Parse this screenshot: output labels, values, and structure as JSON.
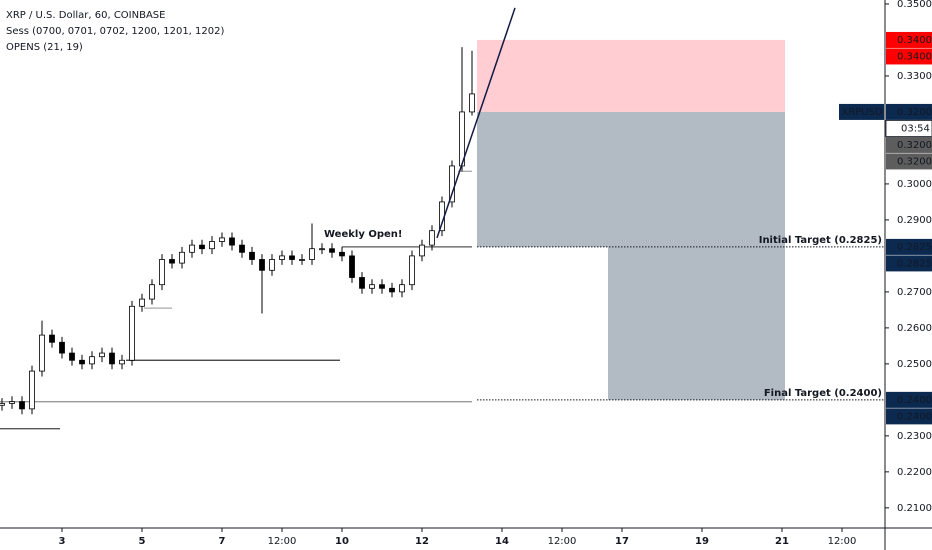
{
  "chart_data": {
    "type": "candlestick",
    "title": "XRP / U.S. Dollar, 60, COINBASE",
    "indicators": [
      "Sess (0700, 0701, 0702, 1200, 1201, 1202)",
      "OPENS (21, 19)"
    ],
    "x": [
      1.5,
      1.75,
      2,
      2.25,
      2.5,
      2.75,
      3,
      3.25,
      3.5,
      3.75,
      4,
      4.25,
      4.5,
      4.75,
      5,
      5.25,
      5.5,
      5.75,
      6,
      6.25,
      6.5,
      6.75,
      7,
      7.25,
      7.5,
      7.75,
      8,
      8.25,
      8.5,
      8.75,
      9,
      9.25,
      9.5,
      9.75,
      10,
      10.25,
      10.5,
      10.75,
      11,
      11.25,
      11.5,
      11.75,
      12,
      12.25,
      12.5,
      12.75,
      13,
      13.25
    ],
    "open": [
      0.2385,
      0.239,
      0.2395,
      0.2375,
      0.248,
      0.258,
      0.256,
      0.253,
      0.251,
      0.25,
      0.252,
      0.253,
      0.25,
      0.251,
      0.266,
      0.268,
      0.272,
      0.279,
      0.278,
      0.281,
      0.283,
      0.282,
      0.284,
      0.285,
      0.283,
      0.281,
      0.279,
      0.276,
      0.279,
      0.28,
      0.279,
      0.279,
      0.282,
      0.282,
      0.281,
      0.28,
      0.274,
      0.271,
      0.272,
      0.271,
      0.27,
      0.272,
      0.28,
      0.283,
      0.287,
      0.295,
      0.305,
      0.32
    ],
    "high": [
      0.2405,
      0.241,
      0.241,
      0.2495,
      0.262,
      0.2595,
      0.2575,
      0.2545,
      0.2525,
      0.2535,
      0.2545,
      0.2545,
      0.2525,
      0.2675,
      0.2695,
      0.2735,
      0.2805,
      0.2805,
      0.2825,
      0.2845,
      0.2845,
      0.2855,
      0.2865,
      0.2865,
      0.2845,
      0.2825,
      0.2805,
      0.2805,
      0.2815,
      0.2815,
      0.2805,
      0.289,
      0.2835,
      0.2835,
      0.2825,
      0.2815,
      0.2755,
      0.2735,
      0.2735,
      0.2725,
      0.2735,
      0.2815,
      0.2845,
      0.2885,
      0.2965,
      0.3065,
      0.338,
      0.337
    ],
    "low": [
      0.237,
      0.2375,
      0.236,
      0.236,
      0.2465,
      0.2545,
      0.2515,
      0.2495,
      0.2485,
      0.2485,
      0.2505,
      0.2485,
      0.2485,
      0.2495,
      0.2645,
      0.2665,
      0.2705,
      0.2765,
      0.2765,
      0.2795,
      0.2805,
      0.2805,
      0.2825,
      0.2815,
      0.2795,
      0.2775,
      0.264,
      0.2745,
      0.2775,
      0.2775,
      0.2775,
      0.2775,
      0.2805,
      0.2795,
      0.2785,
      0.2725,
      0.2695,
      0.2695,
      0.2695,
      0.2685,
      0.2685,
      0.2705,
      0.2785,
      0.2815,
      0.2855,
      0.2935,
      0.3035,
      0.319
    ],
    "close": [
      0.239,
      0.2395,
      0.2375,
      0.248,
      0.258,
      0.256,
      0.253,
      0.251,
      0.25,
      0.252,
      0.253,
      0.25,
      0.251,
      0.266,
      0.268,
      0.272,
      0.279,
      0.278,
      0.281,
      0.283,
      0.282,
      0.284,
      0.285,
      0.283,
      0.281,
      0.279,
      0.276,
      0.279,
      0.28,
      0.279,
      0.279,
      0.282,
      0.282,
      0.281,
      0.28,
      0.274,
      0.271,
      0.272,
      0.271,
      0.27,
      0.272,
      0.28,
      0.283,
      0.287,
      0.295,
      0.305,
      0.32,
      0.325
    ],
    "xlim": [
      1.45,
      23.575
    ],
    "xticks": [
      {
        "value": 3,
        "label": "3"
      },
      {
        "value": 5,
        "label": "5"
      },
      {
        "value": 7,
        "label": "7"
      },
      {
        "value": 8.5,
        "label": "12:00"
      },
      {
        "value": 10,
        "label": "10"
      },
      {
        "value": 12,
        "label": "12"
      },
      {
        "value": 14,
        "label": "14"
      },
      {
        "value": 15.5,
        "label": "12:00"
      },
      {
        "value": 17,
        "label": "17"
      },
      {
        "value": 19,
        "label": "19"
      },
      {
        "value": 21,
        "label": "21"
      },
      {
        "value": 22.5,
        "label": "12:00"
      }
    ],
    "ylim": [
      0.2044,
      0.3511
    ],
    "yticks": [
      {
        "value": 0.35,
        "label": "0.3500"
      },
      {
        "value": 0.33,
        "label": "0.3300"
      },
      {
        "value": 0.3,
        "label": "0.3000"
      },
      {
        "value": 0.29,
        "label": "0.2900"
      },
      {
        "value": 0.27,
        "label": "0.2700"
      },
      {
        "value": 0.26,
        "label": "0.2600"
      },
      {
        "value": 0.25,
        "label": "0.2500"
      },
      {
        "value": 0.23,
        "label": "0.2300"
      },
      {
        "value": 0.22,
        "label": "0.2200"
      },
      {
        "value": 0.21,
        "label": "0.2100"
      }
    ],
    "hlines": [
      {
        "price": 0.2825,
        "from": 10,
        "to": 13.25,
        "color": "#555555"
      },
      {
        "price": 0.251,
        "from": 4.6,
        "to": 9.95,
        "color": "#333333"
      },
      {
        "price": 0.2395,
        "from": 1.45,
        "to": 13.25,
        "color": "#999999"
      },
      {
        "price": 0.232,
        "from": 1.45,
        "to": 2.95,
        "color": "#555555"
      },
      {
        "price": 0.2655,
        "from": 5.05,
        "to": 5.75,
        "color": "#aaaaaa"
      },
      {
        "price": 0.3035,
        "from": 12.9,
        "to": 13.25,
        "color": "#aaaaaa"
      }
    ],
    "trendline": {
      "x": [
        12.375,
        14.325
      ],
      "y": [
        0.285,
        0.3489
      ],
      "color": "#131a45"
    },
    "annotations": [
      {
        "text": "Weekly Open!",
        "x": 10,
        "y": 0.2855
      }
    ],
    "boxes": [
      {
        "from": 13.375,
        "to": 21.075,
        "top": 0.34,
        "bottom": 0.32,
        "color": "#ffcdd2"
      },
      {
        "from": 13.375,
        "to": 21.075,
        "top": 0.32,
        "bottom": 0.2825,
        "color": "#b2bac4"
      },
      {
        "from": 16.65,
        "to": 21.075,
        "top": 0.2825,
        "bottom": 0.24,
        "color": "#b2bac4"
      }
    ],
    "targets": [
      {
        "price": 0.2825,
        "from": 13.375,
        "label": "Initial Target (0.2825)"
      },
      {
        "price": 0.24,
        "from": 13.375,
        "label": "Final Target (0.2400)"
      }
    ],
    "badges": [
      {
        "value": 0.34,
        "label": "0.3400",
        "color": "#ff0000"
      },
      {
        "value": 0.34,
        "label": "0.3400",
        "color": "#ff0000"
      },
      {
        "value": 0.32,
        "label": "0.3200",
        "color": "#0c2a50",
        "symbol": "XRPUSD",
        "countdown": "03:54"
      },
      {
        "value": 0.32,
        "label": "0.3200",
        "color": "#5d5d5d"
      },
      {
        "value": 0.32,
        "label": "0.3200",
        "color": "#5d5d5d"
      },
      {
        "value": 0.2825,
        "label": "0.2825",
        "color": "#0c2a50"
      },
      {
        "value": 0.2825,
        "label": "0.2825",
        "color": "#0c2a50"
      },
      {
        "value": 0.24,
        "label": "0.2400",
        "color": "#0c2a50"
      },
      {
        "value": 0.24,
        "label": "0.2400",
        "color": "#0c2a50"
      }
    ]
  }
}
